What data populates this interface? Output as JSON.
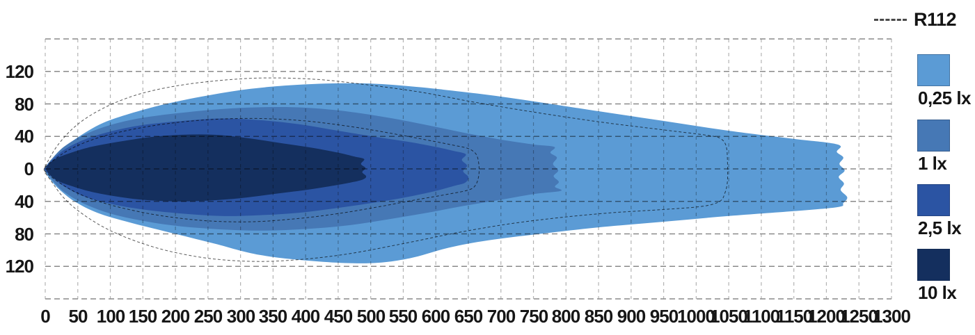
{
  "legend": {
    "r112_label": "R112",
    "items": [
      {
        "name": "0.25-lux",
        "label": "0,25 lx",
        "color": "#5B9BD5"
      },
      {
        "name": "1-lux",
        "label": "1 lx",
        "color": "#4678B5"
      },
      {
        "name": "2.5-lux",
        "label": "2,5 lx",
        "color": "#2B54A3"
      },
      {
        "name": "10-lux",
        "label": "10 lx",
        "color": "#142F5E"
      }
    ]
  },
  "colors": {
    "background": "#FFFFFF",
    "grid_horizontal": "#8A8A8A",
    "grid_vertical": "#B3B3B3",
    "axis_text": "#161616",
    "r112_line": "#5A5A5A"
  },
  "chart_data": {
    "type": "area",
    "description": "Isolux beam pattern of a lamp: nested illuminance contours (0,25 / 1 / 2,5 / 10 lx) plus dashed R112 reference contours. Distances in metres.",
    "grid": true,
    "legend_position": "right",
    "axes": {
      "x": {
        "min": 0,
        "max": 1300,
        "tick_step": 50,
        "ticks": [
          0,
          50,
          100,
          150,
          200,
          250,
          300,
          350,
          400,
          450,
          500,
          550,
          600,
          650,
          700,
          750,
          800,
          850,
          900,
          950,
          1000,
          1050,
          1100,
          1150,
          1200,
          1250,
          1300
        ]
      },
      "y": {
        "min": -160,
        "max": 160,
        "grid_step": 40,
        "grid_values": [
          160,
          120,
          80,
          40,
          0,
          -40,
          -80,
          -120,
          -160
        ],
        "tick_values": [
          120,
          80,
          40,
          0,
          -40,
          -80,
          -120
        ],
        "tick_labels": [
          "120",
          "80",
          "40",
          "0",
          "40",
          "80",
          "120"
        ]
      }
    },
    "series": [
      {
        "name": "0,25 lx",
        "lux": 0.25,
        "color": "#5B9BD5",
        "points": [
          [
            0,
            2
          ],
          [
            15,
            15
          ],
          [
            35,
            30
          ],
          [
            60,
            44
          ],
          [
            90,
            57
          ],
          [
            130,
            68
          ],
          [
            180,
            79
          ],
          [
            240,
            89
          ],
          [
            300,
            97
          ],
          [
            360,
            102
          ],
          [
            430,
            105
          ],
          [
            500,
            105
          ],
          [
            570,
            101
          ],
          [
            640,
            95
          ],
          [
            700,
            89
          ],
          [
            760,
            82
          ],
          [
            850,
            71
          ],
          [
            950,
            59
          ],
          [
            1050,
            47
          ],
          [
            1150,
            37
          ],
          [
            1205,
            32
          ],
          [
            1222,
            28
          ],
          [
            1216,
            21
          ],
          [
            1226,
            14
          ],
          [
            1220,
            6
          ],
          [
            1228,
            -2
          ],
          [
            1219,
            -10
          ],
          [
            1227,
            -18
          ],
          [
            1222,
            -26
          ],
          [
            1232,
            -35
          ],
          [
            1226,
            -42
          ],
          [
            1218,
            -47
          ],
          [
            1150,
            -52
          ],
          [
            1050,
            -58
          ],
          [
            950,
            -65
          ],
          [
            850,
            -72
          ],
          [
            760,
            -80
          ],
          [
            680,
            -88
          ],
          [
            620,
            -97
          ],
          [
            560,
            -110
          ],
          [
            500,
            -116
          ],
          [
            420,
            -114
          ],
          [
            330,
            -106
          ],
          [
            260,
            -92
          ],
          [
            190,
            -78
          ],
          [
            130,
            -66
          ],
          [
            80,
            -54
          ],
          [
            45,
            -40
          ],
          [
            20,
            -24
          ],
          [
            5,
            -10
          ],
          [
            0,
            -3
          ]
        ]
      },
      {
        "name": "1 lx",
        "lux": 1,
        "color": "#4678B5",
        "points": [
          [
            0,
            2
          ],
          [
            12,
            14
          ],
          [
            30,
            28
          ],
          [
            60,
            42
          ],
          [
            100,
            54
          ],
          [
            150,
            63
          ],
          [
            220,
            70
          ],
          [
            300,
            75
          ],
          [
            380,
            76
          ],
          [
            450,
            72
          ],
          [
            520,
            64
          ],
          [
            580,
            55
          ],
          [
            640,
            45
          ],
          [
            700,
            36
          ],
          [
            750,
            30
          ],
          [
            782,
            27
          ],
          [
            776,
            20
          ],
          [
            786,
            14
          ],
          [
            780,
            6
          ],
          [
            788,
            -2
          ],
          [
            781,
            -9
          ],
          [
            789,
            -16
          ],
          [
            783,
            -22
          ],
          [
            792,
            -27
          ],
          [
            750,
            -31
          ],
          [
            700,
            -38
          ],
          [
            640,
            -46
          ],
          [
            580,
            -55
          ],
          [
            520,
            -63
          ],
          [
            460,
            -70
          ],
          [
            400,
            -74
          ],
          [
            330,
            -76
          ],
          [
            260,
            -74
          ],
          [
            200,
            -70
          ],
          [
            150,
            -64
          ],
          [
            100,
            -55
          ],
          [
            60,
            -43
          ],
          [
            30,
            -29
          ],
          [
            12,
            -15
          ],
          [
            0,
            -2
          ]
        ]
      },
      {
        "name": "2,5 lx",
        "lux": 2.5,
        "color": "#2B54A3",
        "points": [
          [
            0,
            1
          ],
          [
            12,
            12
          ],
          [
            30,
            24
          ],
          [
            60,
            36
          ],
          [
            100,
            46
          ],
          [
            150,
            54
          ],
          [
            210,
            59
          ],
          [
            270,
            62
          ],
          [
            330,
            60
          ],
          [
            390,
            55
          ],
          [
            450,
            47
          ],
          [
            510,
            39
          ],
          [
            560,
            33
          ],
          [
            600,
            27
          ],
          [
            628,
            22
          ],
          [
            646,
            18
          ],
          [
            640,
            11
          ],
          [
            648,
            4
          ],
          [
            642,
            -3
          ],
          [
            650,
            -10
          ],
          [
            645,
            -17
          ],
          [
            628,
            -21
          ],
          [
            600,
            -27
          ],
          [
            560,
            -34
          ],
          [
            510,
            -41
          ],
          [
            450,
            -48
          ],
          [
            390,
            -54
          ],
          [
            330,
            -57
          ],
          [
            270,
            -58
          ],
          [
            210,
            -55
          ],
          [
            150,
            -50
          ],
          [
            100,
            -43
          ],
          [
            60,
            -34
          ],
          [
            30,
            -22
          ],
          [
            12,
            -11
          ],
          [
            0,
            -2
          ]
        ]
      },
      {
        "name": "10 lx",
        "lux": 10,
        "color": "#142F5E",
        "points": [
          [
            2,
            2
          ],
          [
            8,
            8
          ],
          [
            20,
            14
          ],
          [
            40,
            20
          ],
          [
            70,
            27
          ],
          [
            110,
            33
          ],
          [
            160,
            39
          ],
          [
            210,
            42
          ],
          [
            260,
            42
          ],
          [
            310,
            38
          ],
          [
            360,
            32
          ],
          [
            410,
            26
          ],
          [
            450,
            20
          ],
          [
            476,
            15
          ],
          [
            490,
            12
          ],
          [
            485,
            6
          ],
          [
            492,
            1
          ],
          [
            487,
            -4
          ],
          [
            493,
            -9
          ],
          [
            488,
            -13
          ],
          [
            468,
            -17
          ],
          [
            440,
            -21
          ],
          [
            400,
            -26
          ],
          [
            350,
            -31
          ],
          [
            300,
            -36
          ],
          [
            250,
            -39
          ],
          [
            200,
            -40
          ],
          [
            150,
            -38
          ],
          [
            110,
            -34
          ],
          [
            70,
            -28
          ],
          [
            40,
            -21
          ],
          [
            20,
            -15
          ],
          [
            8,
            -8
          ],
          [
            2,
            -2
          ]
        ]
      }
    ],
    "reference_contours": [
      {
        "name": "R112 outer",
        "style": "dashed",
        "points": [
          [
            0,
            3
          ],
          [
            20,
            30
          ],
          [
            50,
            55
          ],
          [
            90,
            75
          ],
          [
            140,
            91
          ],
          [
            200,
            102
          ],
          [
            270,
            109
          ],
          [
            340,
            112
          ],
          [
            420,
            110
          ],
          [
            500,
            103
          ],
          [
            580,
            94
          ],
          [
            660,
            82
          ],
          [
            750,
            70
          ],
          [
            850,
            58
          ],
          [
            950,
            48
          ],
          [
            1020,
            41
          ],
          [
            1038,
            37
          ],
          [
            1046,
            28
          ],
          [
            1048,
            10
          ],
          [
            1048,
            -15
          ],
          [
            1044,
            -30
          ],
          [
            1036,
            -40
          ],
          [
            1010,
            -46
          ],
          [
            950,
            -50
          ],
          [
            870,
            -54
          ],
          [
            790,
            -60
          ],
          [
            710,
            -68
          ],
          [
            630,
            -79
          ],
          [
            550,
            -92
          ],
          [
            470,
            -104
          ],
          [
            400,
            -111
          ],
          [
            330,
            -114
          ],
          [
            260,
            -111
          ],
          [
            200,
            -103
          ],
          [
            150,
            -92
          ],
          [
            100,
            -76
          ],
          [
            60,
            -57
          ],
          [
            30,
            -37
          ],
          [
            10,
            -16
          ],
          [
            0,
            -4
          ]
        ]
      },
      {
        "name": "R112 inner",
        "style": "dashed",
        "points": [
          [
            0,
            2
          ],
          [
            15,
            12
          ],
          [
            40,
            25
          ],
          [
            80,
            38
          ],
          [
            130,
            48
          ],
          [
            190,
            56
          ],
          [
            260,
            61
          ],
          [
            330,
            62
          ],
          [
            400,
            59
          ],
          [
            470,
            52
          ],
          [
            530,
            44
          ],
          [
            590,
            35
          ],
          [
            628,
            29
          ],
          [
            650,
            25
          ],
          [
            662,
            18
          ],
          [
            666,
            6
          ],
          [
            666,
            -8
          ],
          [
            661,
            -20
          ],
          [
            650,
            -26
          ],
          [
            620,
            -31
          ],
          [
            570,
            -38
          ],
          [
            510,
            -47
          ],
          [
            450,
            -55
          ],
          [
            390,
            -61
          ],
          [
            320,
            -65
          ],
          [
            250,
            -64
          ],
          [
            190,
            -59
          ],
          [
            140,
            -52
          ],
          [
            90,
            -42
          ],
          [
            50,
            -30
          ],
          [
            20,
            -16
          ],
          [
            0,
            -3
          ]
        ]
      }
    ]
  }
}
